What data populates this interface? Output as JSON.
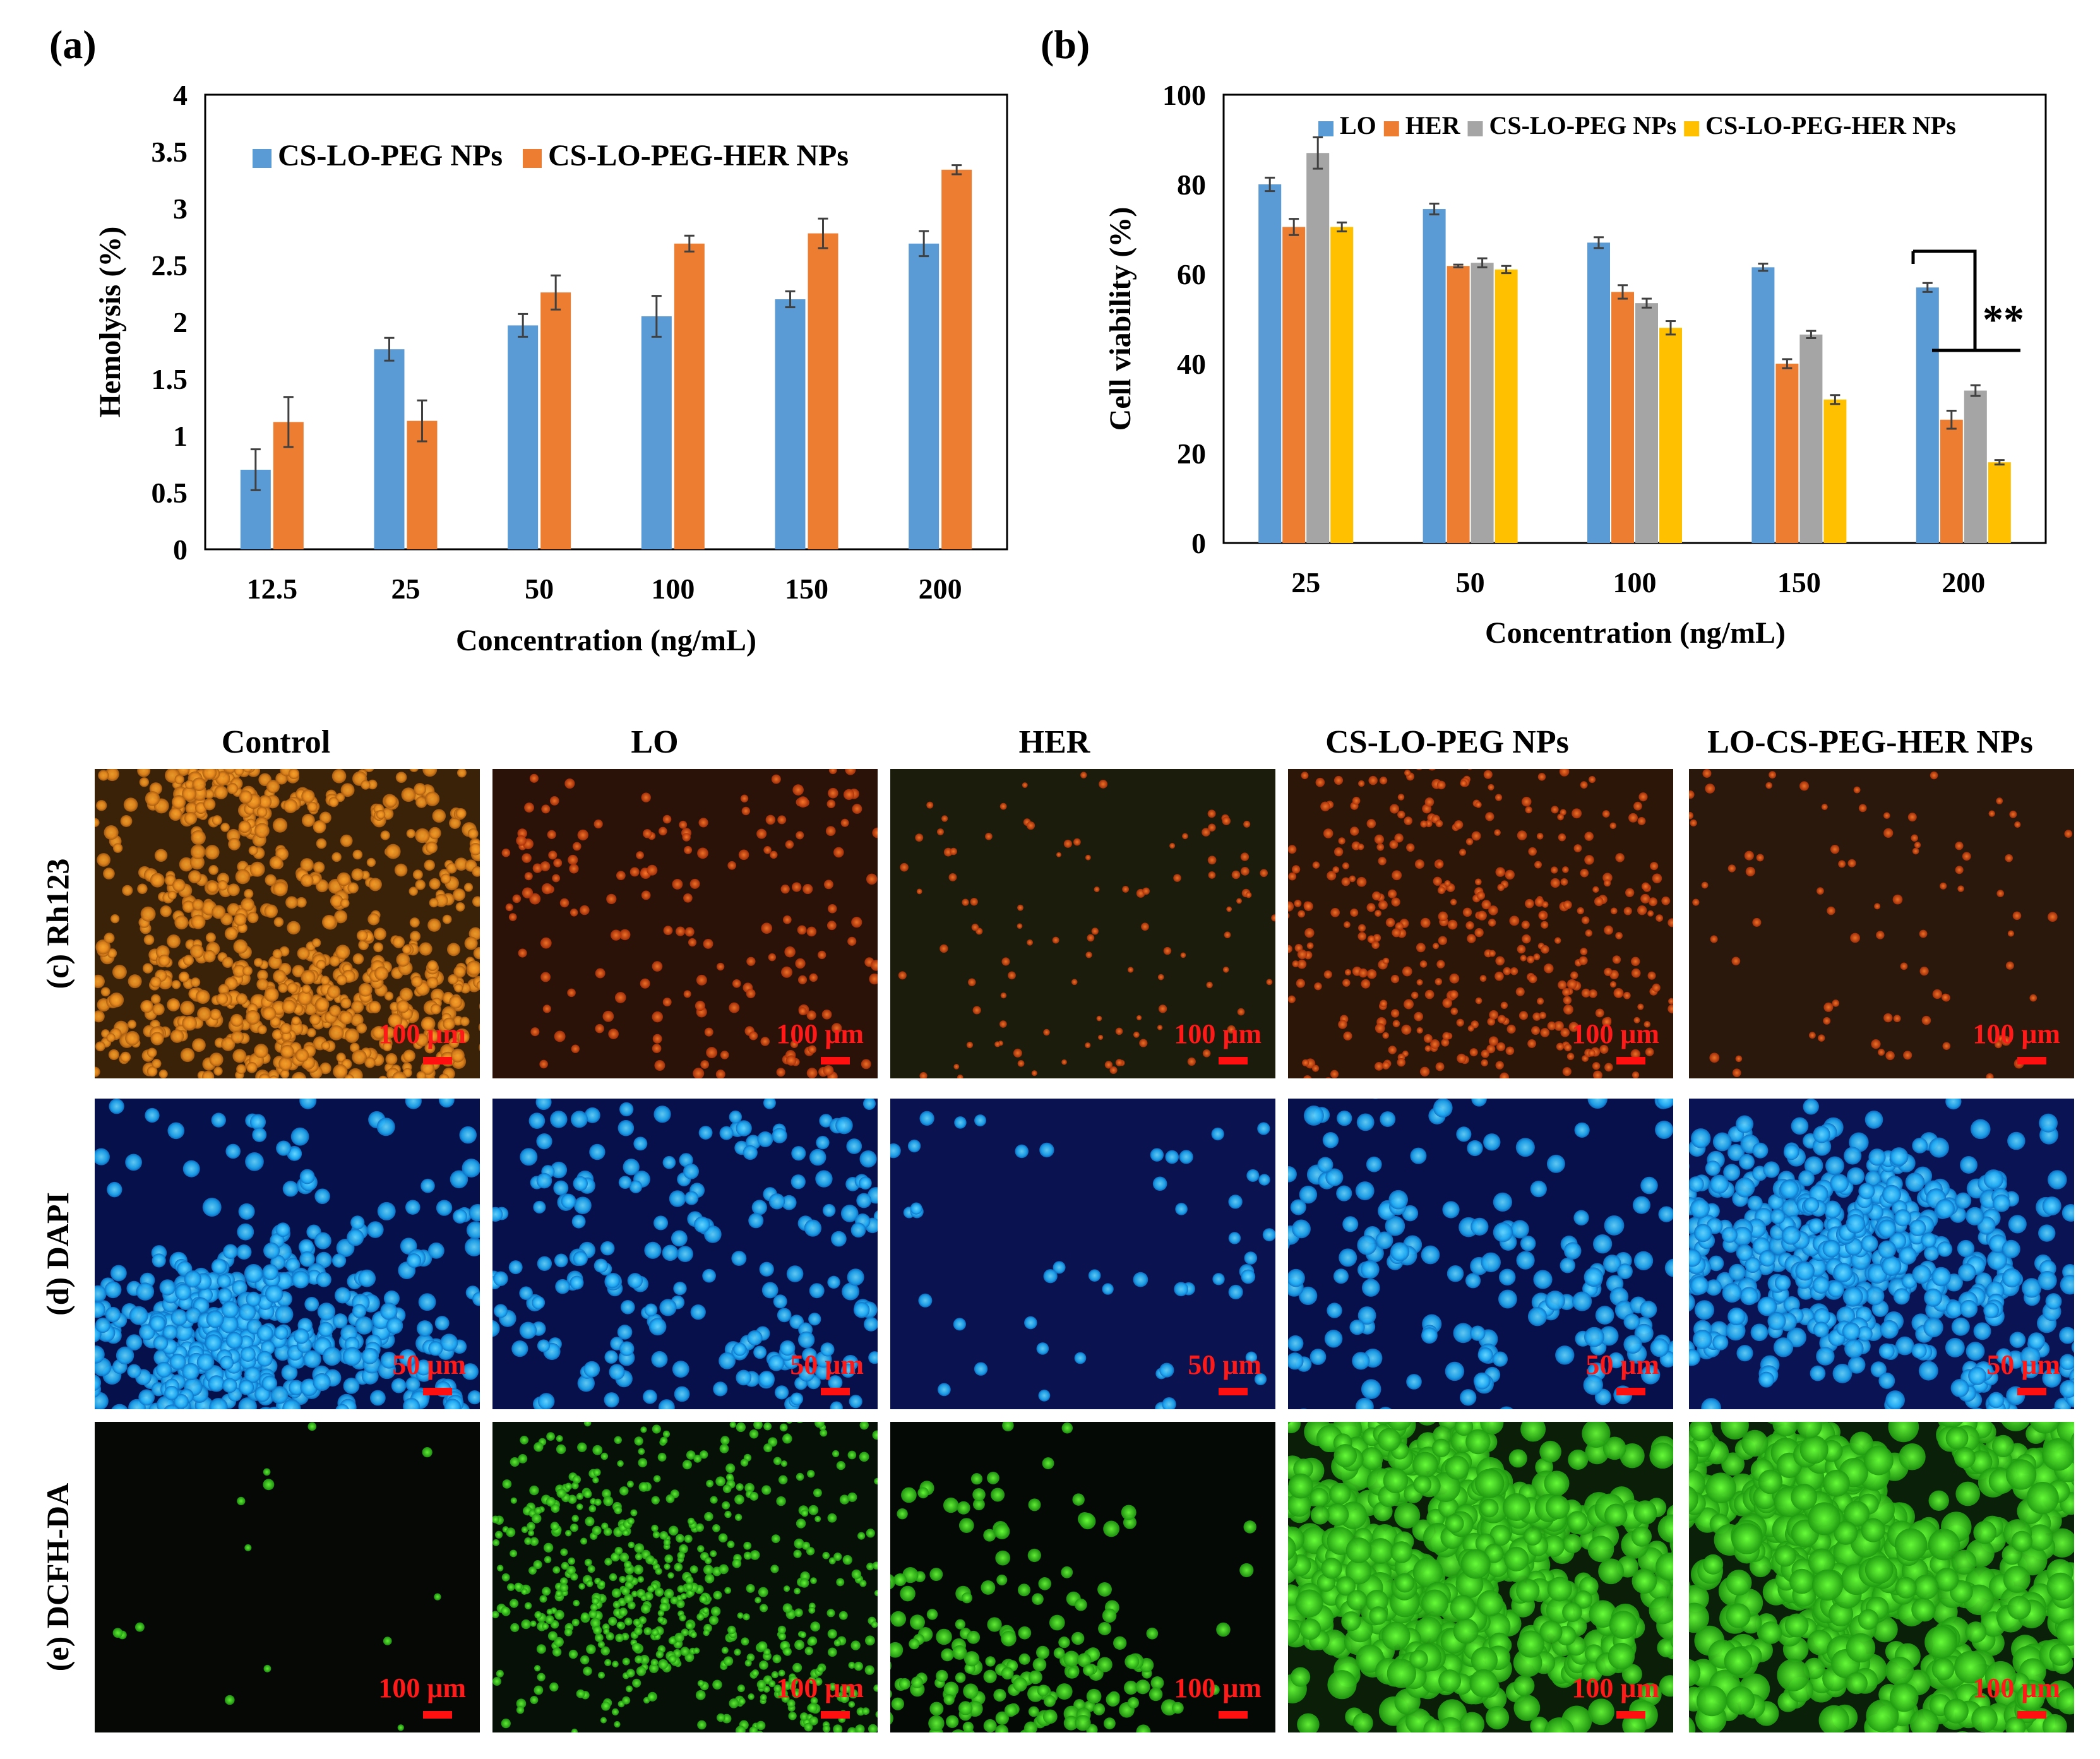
{
  "panel_a": {
    "label": "(a)",
    "legend_loc": "top-left inside",
    "chart_data": {
      "type": "bar",
      "categories": [
        "12.5",
        "25",
        "50",
        "100",
        "150",
        "200"
      ],
      "series": [
        {
          "name": "CS-LO-PEG NPs",
          "values": [
            0.7,
            1.76,
            1.97,
            2.05,
            2.2,
            2.69
          ],
          "errors": [
            0.18,
            0.1,
            0.1,
            0.18,
            0.07,
            0.11
          ]
        },
        {
          "name": "CS-LO-PEG-HER NPs",
          "values": [
            1.12,
            1.13,
            2.26,
            2.69,
            2.78,
            3.34
          ],
          "errors": [
            0.22,
            0.18,
            0.15,
            0.07,
            0.13,
            0.04
          ]
        }
      ],
      "xlabel": "Concentration (ng/mL)",
      "ylabel": "Hemolysis (%)",
      "ylim": [
        0,
        4
      ],
      "yticks": [
        "0",
        "0.5",
        "1",
        "1.5",
        "2",
        "2.5",
        "3",
        "3.5",
        "4"
      ],
      "grid": false,
      "colors": [
        "#5b9bd5",
        "#ed7d31"
      ]
    }
  },
  "panel_b": {
    "label": "(b)",
    "legend_loc": "top inside",
    "significance": "**",
    "chart_data": {
      "type": "bar",
      "categories": [
        "25",
        "50",
        "100",
        "150",
        "200"
      ],
      "series": [
        {
          "name": "LO",
          "values": [
            80,
            74.5,
            67,
            61.5,
            57
          ],
          "errors": [
            1.5,
            1.2,
            1.2,
            0.8,
            1
          ]
        },
        {
          "name": "HER",
          "values": [
            70.5,
            61.8,
            56,
            40,
            27.5
          ],
          "errors": [
            1.8,
            0.3,
            1.5,
            1,
            2
          ]
        },
        {
          "name": "CS-LO-PEG NPs",
          "values": [
            87,
            62.5,
            53.5,
            46.5,
            34
          ],
          "errors": [
            3.5,
            1,
            1,
            0.8,
            1.2
          ]
        },
        {
          "name": "CS-LO-PEG-HER NPs",
          "values": [
            70.5,
            61,
            48,
            32,
            18
          ],
          "errors": [
            1,
            0.8,
            1.5,
            1,
            0.5
          ]
        }
      ],
      "xlabel": "Concentration (ng/mL)",
      "ylabel": "Cell viability (%)",
      "ylim": [
        0,
        100
      ],
      "yticks": [
        "0",
        "20",
        "40",
        "60",
        "80",
        "100"
      ],
      "grid": false,
      "colors": [
        "#5b9bd5",
        "#ed7d31",
        "#a5a5a5",
        "#ffc000"
      ]
    }
  },
  "micrographs": {
    "columns": [
      "Control",
      "LO",
      "HER",
      "CS-LO-PEG NPs",
      "LO-CS-PEG-HER NPs"
    ],
    "rows": [
      {
        "label": "(c)  Rh123",
        "scale": [
          "100 μm",
          "100 μm",
          "100 μm",
          "100 μm",
          "100 μm"
        ]
      },
      {
        "label": "(d)   DAPI",
        "scale": [
          "50 μm",
          "50 μm",
          "50 μm",
          "50 μm",
          "50 μm"
        ]
      },
      {
        "label": "(e)  DCFH-DA",
        "scale": [
          "100 μm",
          "100 μm",
          "100 μm",
          "100 μm",
          "100 μm"
        ]
      }
    ]
  }
}
